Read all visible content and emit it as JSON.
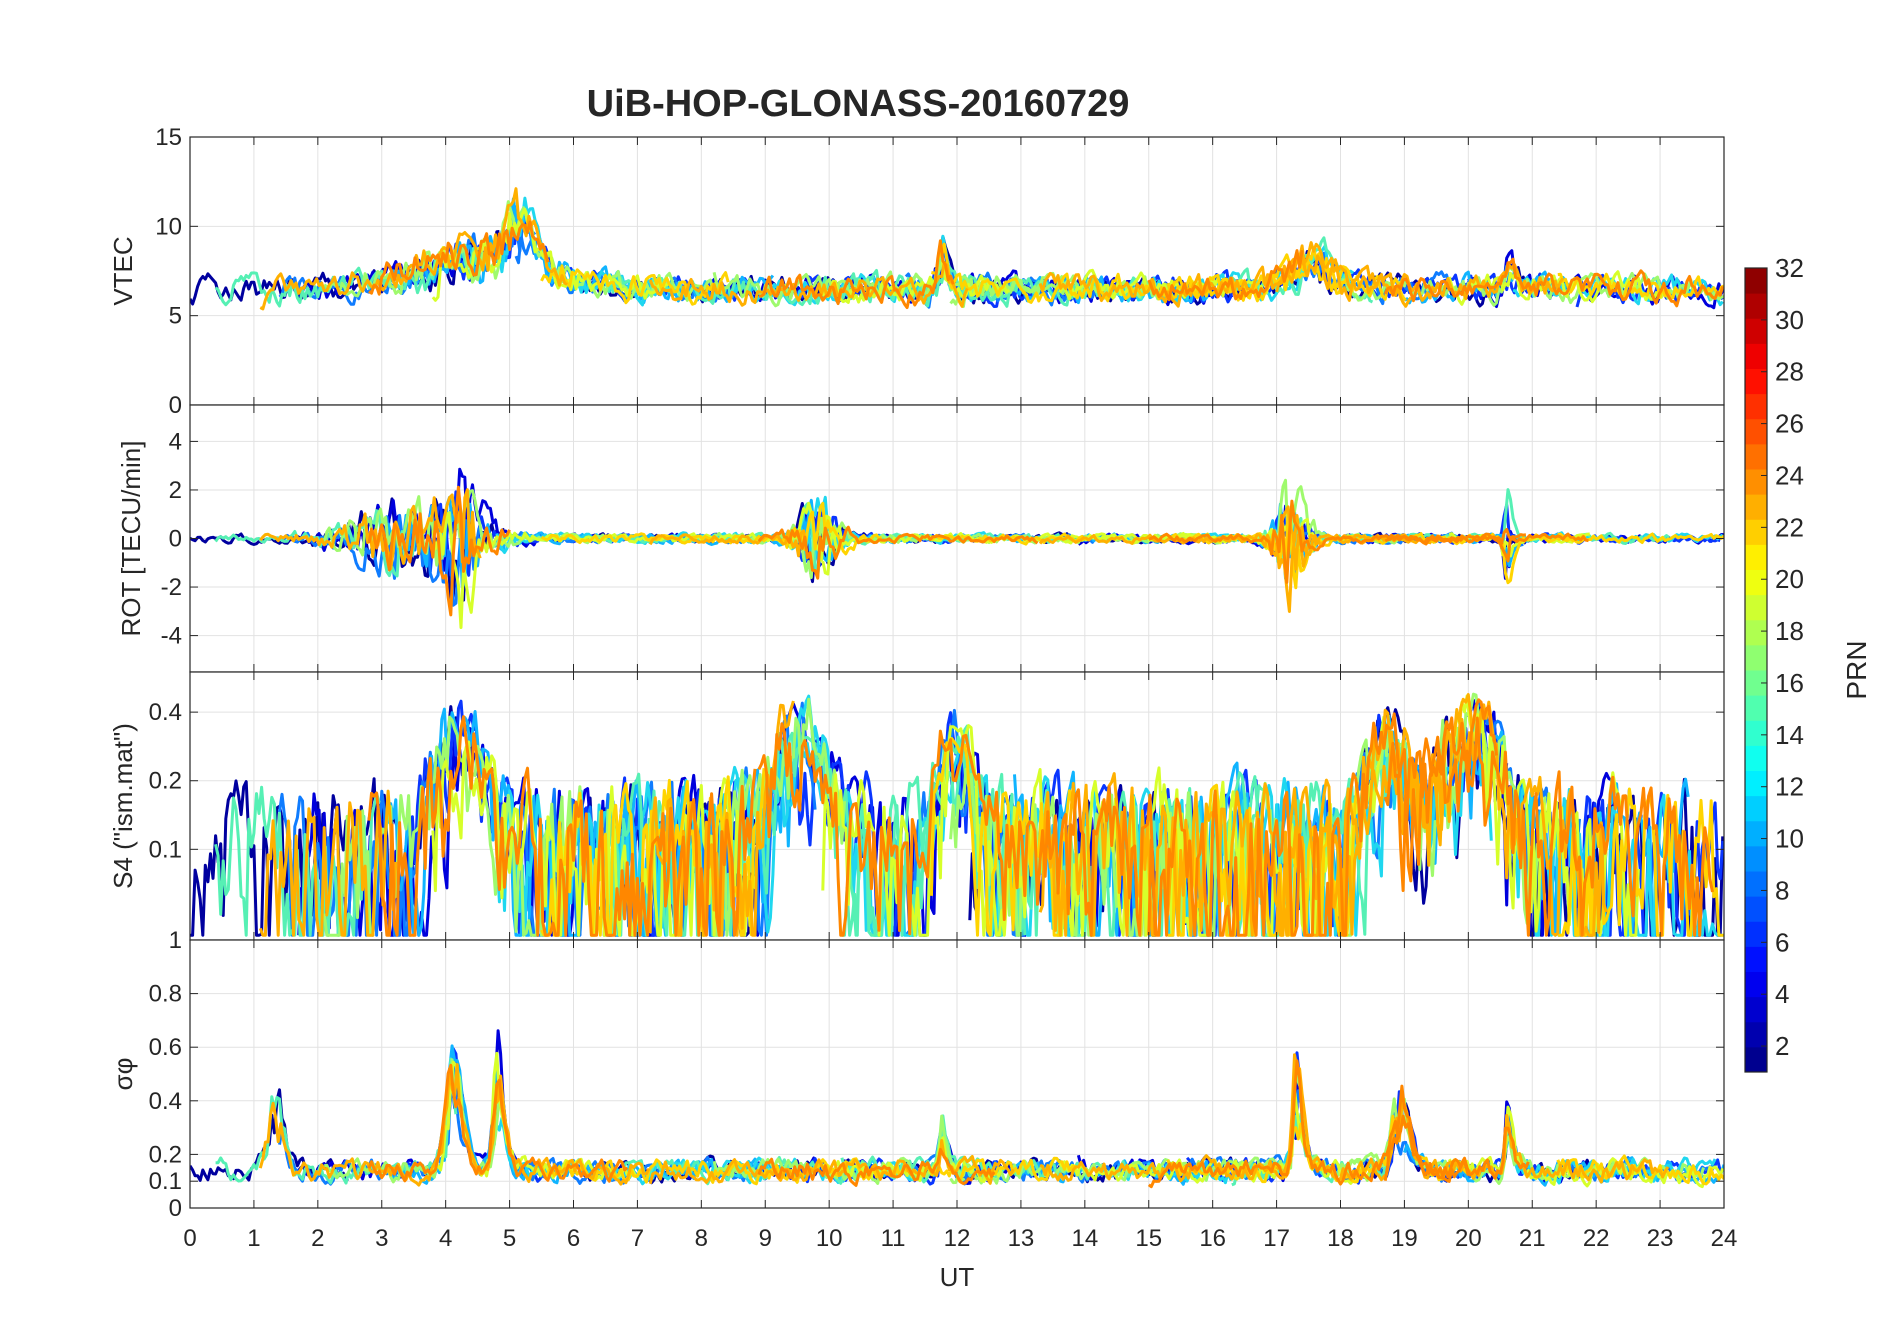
{
  "chart_data": {
    "type": "line",
    "title": "UiB-HOP-GLONASS-20160729",
    "xlabel": "UT",
    "xlim": [
      0,
      24
    ],
    "x_ticks": [
      "0",
      "1",
      "2",
      "3",
      "4",
      "5",
      "6",
      "7",
      "8",
      "9",
      "10",
      "11",
      "12",
      "13",
      "14",
      "15",
      "16",
      "17",
      "18",
      "19",
      "20",
      "21",
      "22",
      "23",
      "24"
    ],
    "grid": true,
    "panels": [
      {
        "id": "vtec",
        "ylabel": "VTEC",
        "ylim": [
          0,
          15
        ],
        "y_ticks": [
          0,
          5,
          10,
          15
        ],
        "y_tick_labels": [
          "0",
          "5",
          "10",
          "15"
        ],
        "baseline": 6.5,
        "noise": 1.1,
        "events": [
          {
            "x": 4.5,
            "amp": 3.5,
            "w": 1.4
          },
          {
            "x": 5.1,
            "amp": 5.5,
            "w": 0.25
          },
          {
            "x": 11.75,
            "amp": 5.0,
            "w": 0.08
          },
          {
            "x": 17.5,
            "amp": 3.0,
            "w": 0.5
          },
          {
            "x": 20.6,
            "amp": 2.5,
            "w": 0.1
          }
        ]
      },
      {
        "id": "rot",
        "ylabel": "ROT [TECU/min]",
        "ylim": [
          -5.5,
          5.5
        ],
        "y_ticks": [
          -4,
          -2,
          0,
          2,
          4
        ],
        "y_tick_labels": [
          "-4",
          "-2",
          "0",
          "2",
          "4"
        ],
        "baseline": 0,
        "noise": 0.25,
        "events": [
          {
            "x": 3.5,
            "amp": 3.0,
            "w": 1.2
          },
          {
            "x": 4.2,
            "amp": 5.0,
            "w": 0.3
          },
          {
            "x": 9.8,
            "amp": 3.0,
            "w": 0.4
          },
          {
            "x": 17.2,
            "amp": 4.5,
            "w": 0.3
          },
          {
            "x": 20.6,
            "amp": -4.5,
            "w": 0.06
          }
        ]
      },
      {
        "id": "s4",
        "ylabel": "S4 (\"ism.mat\")",
        "ylim": [
          0.04,
          0.6
        ],
        "y_ticks": [
          0.1,
          0.2,
          0.4
        ],
        "y_tick_labels": [
          "0.1",
          "0.2",
          "0.4"
        ],
        "log_scale": true,
        "baseline": 0.09,
        "noise": 0.15,
        "events": [
          {
            "x": 4.2,
            "amp": 0.4,
            "w": 0.5
          },
          {
            "x": 9.5,
            "amp": 0.45,
            "w": 0.5
          },
          {
            "x": 11.9,
            "amp": 0.35,
            "w": 0.3
          },
          {
            "x": 18.7,
            "amp": 0.4,
            "w": 0.4
          },
          {
            "x": 20.0,
            "amp": 0.45,
            "w": 0.6
          }
        ]
      },
      {
        "id": "sigma_phi",
        "ylabel": "σφ",
        "ylim": [
          0,
          1
        ],
        "y_ticks": [
          0,
          0.1,
          0.2,
          0.4,
          0.6,
          0.8,
          1
        ],
        "y_tick_labels": [
          "0",
          "0.1",
          "0.2",
          "0.4",
          "0.6",
          "0.8",
          "1"
        ],
        "log_scale": false,
        "baseline": 0.14,
        "noise": 0.06,
        "events": [
          {
            "x": 1.3,
            "amp": 0.5,
            "w": 0.15
          },
          {
            "x": 4.1,
            "amp": 0.8,
            "w": 0.15
          },
          {
            "x": 4.8,
            "amp": 0.8,
            "w": 0.1
          },
          {
            "x": 11.75,
            "amp": 0.45,
            "w": 0.05
          },
          {
            "x": 17.3,
            "amp": 0.85,
            "w": 0.08
          },
          {
            "x": 18.9,
            "amp": 0.5,
            "w": 0.15
          },
          {
            "x": 20.6,
            "amp": 0.55,
            "w": 0.05
          }
        ]
      }
    ],
    "colorbar": {
      "label": "PRN",
      "range": [
        1,
        32
      ],
      "ticks": [
        "2",
        "4",
        "6",
        "8",
        "10",
        "12",
        "14",
        "16",
        "18",
        "20",
        "22",
        "24",
        "26",
        "28",
        "30",
        "32"
      ],
      "colormap": "jet"
    },
    "series_colors": [
      "#00009f",
      "#0000dc",
      "#0a36ff",
      "#0f7cff",
      "#10b4ff",
      "#1fd7ef",
      "#56f0b4",
      "#9ffa6d",
      "#d7ff2a",
      "#ffd400",
      "#ffb000",
      "#ff8700"
    ]
  }
}
